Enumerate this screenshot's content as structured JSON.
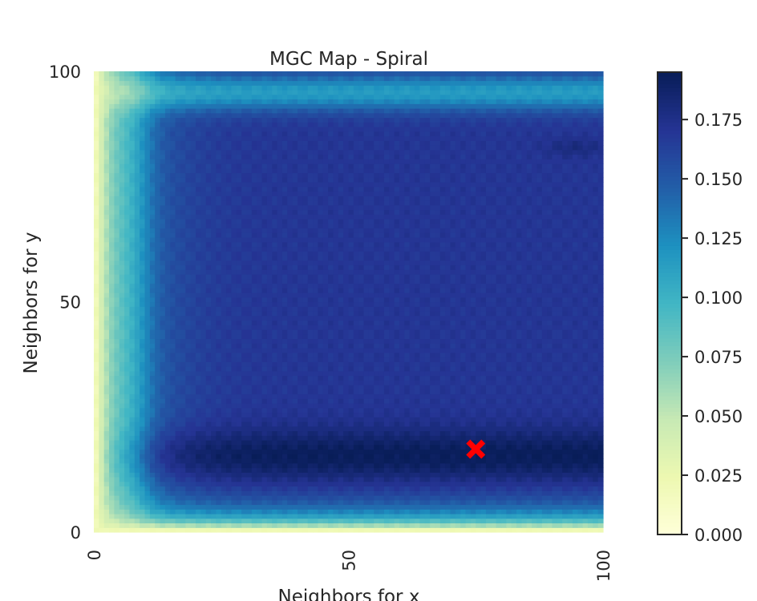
{
  "chart_data": {
    "type": "heatmap",
    "title": "MGC Map - Spiral",
    "xlabel": "Neighbors for x",
    "ylabel": "Neighbors for y",
    "xlim": [
      0,
      100
    ],
    "ylim": [
      0,
      100
    ],
    "x_ticks": [
      "0",
      "50",
      "100"
    ],
    "y_ticks": [
      "0",
      "50",
      "100"
    ],
    "colormap": "YlGnBu",
    "color_range": [
      0.0,
      0.195
    ],
    "colorbar_ticks": [
      "0.000",
      "0.025",
      "0.050",
      "0.075",
      "0.100",
      "0.125",
      "0.150",
      "0.175"
    ],
    "colorbar_tick_values": [
      0.0,
      0.025,
      0.05,
      0.075,
      0.1,
      0.125,
      0.15,
      0.175
    ],
    "optimal_scale": {
      "x": 75,
      "y": 18,
      "marker": "X",
      "color": "#ff0000"
    },
    "grid": false
  }
}
